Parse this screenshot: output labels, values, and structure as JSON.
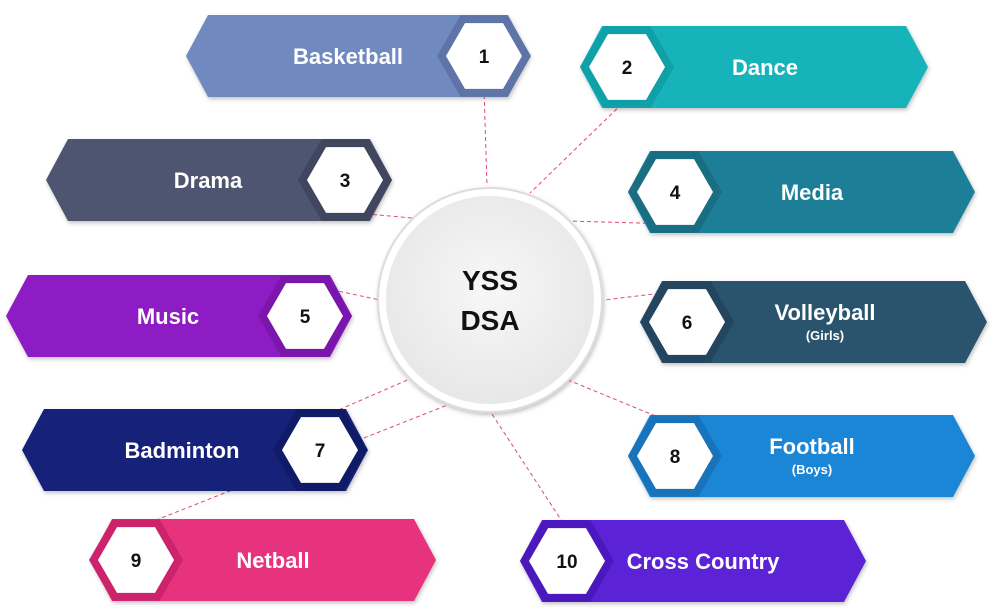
{
  "center": {
    "line1": "YSS",
    "line2": "DSA"
  },
  "items": [
    {
      "number": "1",
      "label": "Basketball",
      "sublabel": "",
      "color": "#6f8ac0",
      "number_color": "#5e73a6"
    },
    {
      "number": "2",
      "label": "Dance",
      "sublabel": "",
      "color": "#14b3bb",
      "number_color": "#0fa0a8"
    },
    {
      "number": "3",
      "label": "Drama",
      "sublabel": "",
      "color": "#4d5570",
      "number_color": "#3f465e"
    },
    {
      "number": "4",
      "label": "Media",
      "sublabel": "",
      "color": "#1f7f97",
      "number_color": "#1a6e83"
    },
    {
      "number": "5",
      "label": "Music",
      "sublabel": "",
      "color": "#8d1ec4",
      "number_color": "#7a16ab"
    },
    {
      "number": "6",
      "label": "Volleyball",
      "sublabel": "(Girls)",
      "color": "#2b526e",
      "number_color": "#234560"
    },
    {
      "number": "7",
      "label": "Badminton",
      "sublabel": "",
      "color": "#15237a",
      "number_color": "#0f1b66"
    },
    {
      "number": "8",
      "label": "Football",
      "sublabel": "(Boys)",
      "color": "#1f86d6",
      "number_color": "#1973bb"
    },
    {
      "number": "9",
      "label": "Netball",
      "sublabel": "",
      "color": "#e7307e",
      "number_color": "#cc236c"
    },
    {
      "number": "10",
      "label": "Cross Country",
      "sublabel": "",
      "color": "#5b22d6",
      "number_color": "#4a18bd"
    }
  ]
}
